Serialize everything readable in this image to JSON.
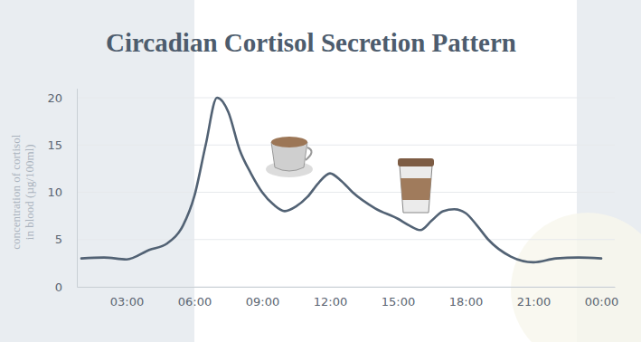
{
  "chart_data": {
    "type": "line",
    "title": "Circadian Cortisol Secretion Pattern",
    "ylabel": [
      "concentration of cortisol",
      "in blood  (µg/100ml)"
    ],
    "x": [
      1,
      2,
      3,
      4,
      4.8,
      5.5,
      6,
      6.5,
      7,
      7.5,
      8,
      8.5,
      9,
      9.5,
      10,
      10.5,
      11,
      11.5,
      12,
      12.5,
      13,
      14,
      15,
      15.5,
      16,
      16.5,
      17,
      17.5,
      18,
      18.5,
      19,
      20,
      21,
      22,
      23,
      24
    ],
    "values": [
      3.0,
      3.1,
      2.9,
      3.9,
      4.6,
      6.5,
      9.6,
      15.0,
      20.0,
      18.5,
      14.5,
      12.0,
      10.0,
      8.7,
      8.0,
      8.5,
      9.5,
      11.0,
      12.0,
      11.2,
      10.0,
      8.3,
      7.2,
      6.5,
      6.0,
      7.0,
      8.0,
      8.2,
      7.8,
      6.5,
      5.0,
      3.2,
      2.6,
      3.0,
      3.1,
      3.0
    ],
    "color": "#526274",
    "xlim": [
      0.8,
      24.6
    ],
    "xticks": [
      {
        "value": 3,
        "label": "03:00"
      },
      {
        "value": 6,
        "label": "06:00"
      },
      {
        "value": 9,
        "label": "09:00"
      },
      {
        "value": 12,
        "label": "12:00"
      },
      {
        "value": 15,
        "label": "15:00"
      },
      {
        "value": 18,
        "label": "18:00"
      },
      {
        "value": 21,
        "label": "21:00"
      },
      {
        "value": 24,
        "label": "00:00"
      }
    ],
    "ylim": [
      0,
      21
    ],
    "yticks": [
      0,
      5,
      10,
      15,
      20
    ],
    "grid": true
  }
}
